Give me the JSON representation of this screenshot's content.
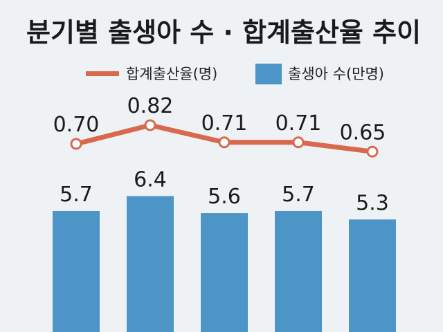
{
  "chart_data": {
    "type": "bar",
    "title": "분기별 출생아 수 · 합계출산율 추이",
    "categories": [
      "",
      "",
      "",
      "",
      ""
    ],
    "series": [
      {
        "name": "출생아 수(만명)",
        "type": "bar",
        "values": [
          5.7,
          6.4,
          5.6,
          5.7,
          5.3
        ],
        "labels": [
          "5.7",
          "6.4",
          "5.6",
          "5.7",
          "5.3"
        ],
        "color": "#4d95c6"
      },
      {
        "name": "합계출산율(명)",
        "type": "line",
        "values": [
          0.7,
          0.82,
          0.71,
          0.71,
          0.65
        ],
        "labels": [
          "0.70",
          "0.82",
          "0.71",
          "0.71",
          "0.65"
        ],
        "color": "#d8694f"
      }
    ],
    "legend": "top-center",
    "grid": false
  },
  "colors": {
    "background": "#eef2f5",
    "bar": "#4d95c6",
    "line": "#d8694f"
  }
}
